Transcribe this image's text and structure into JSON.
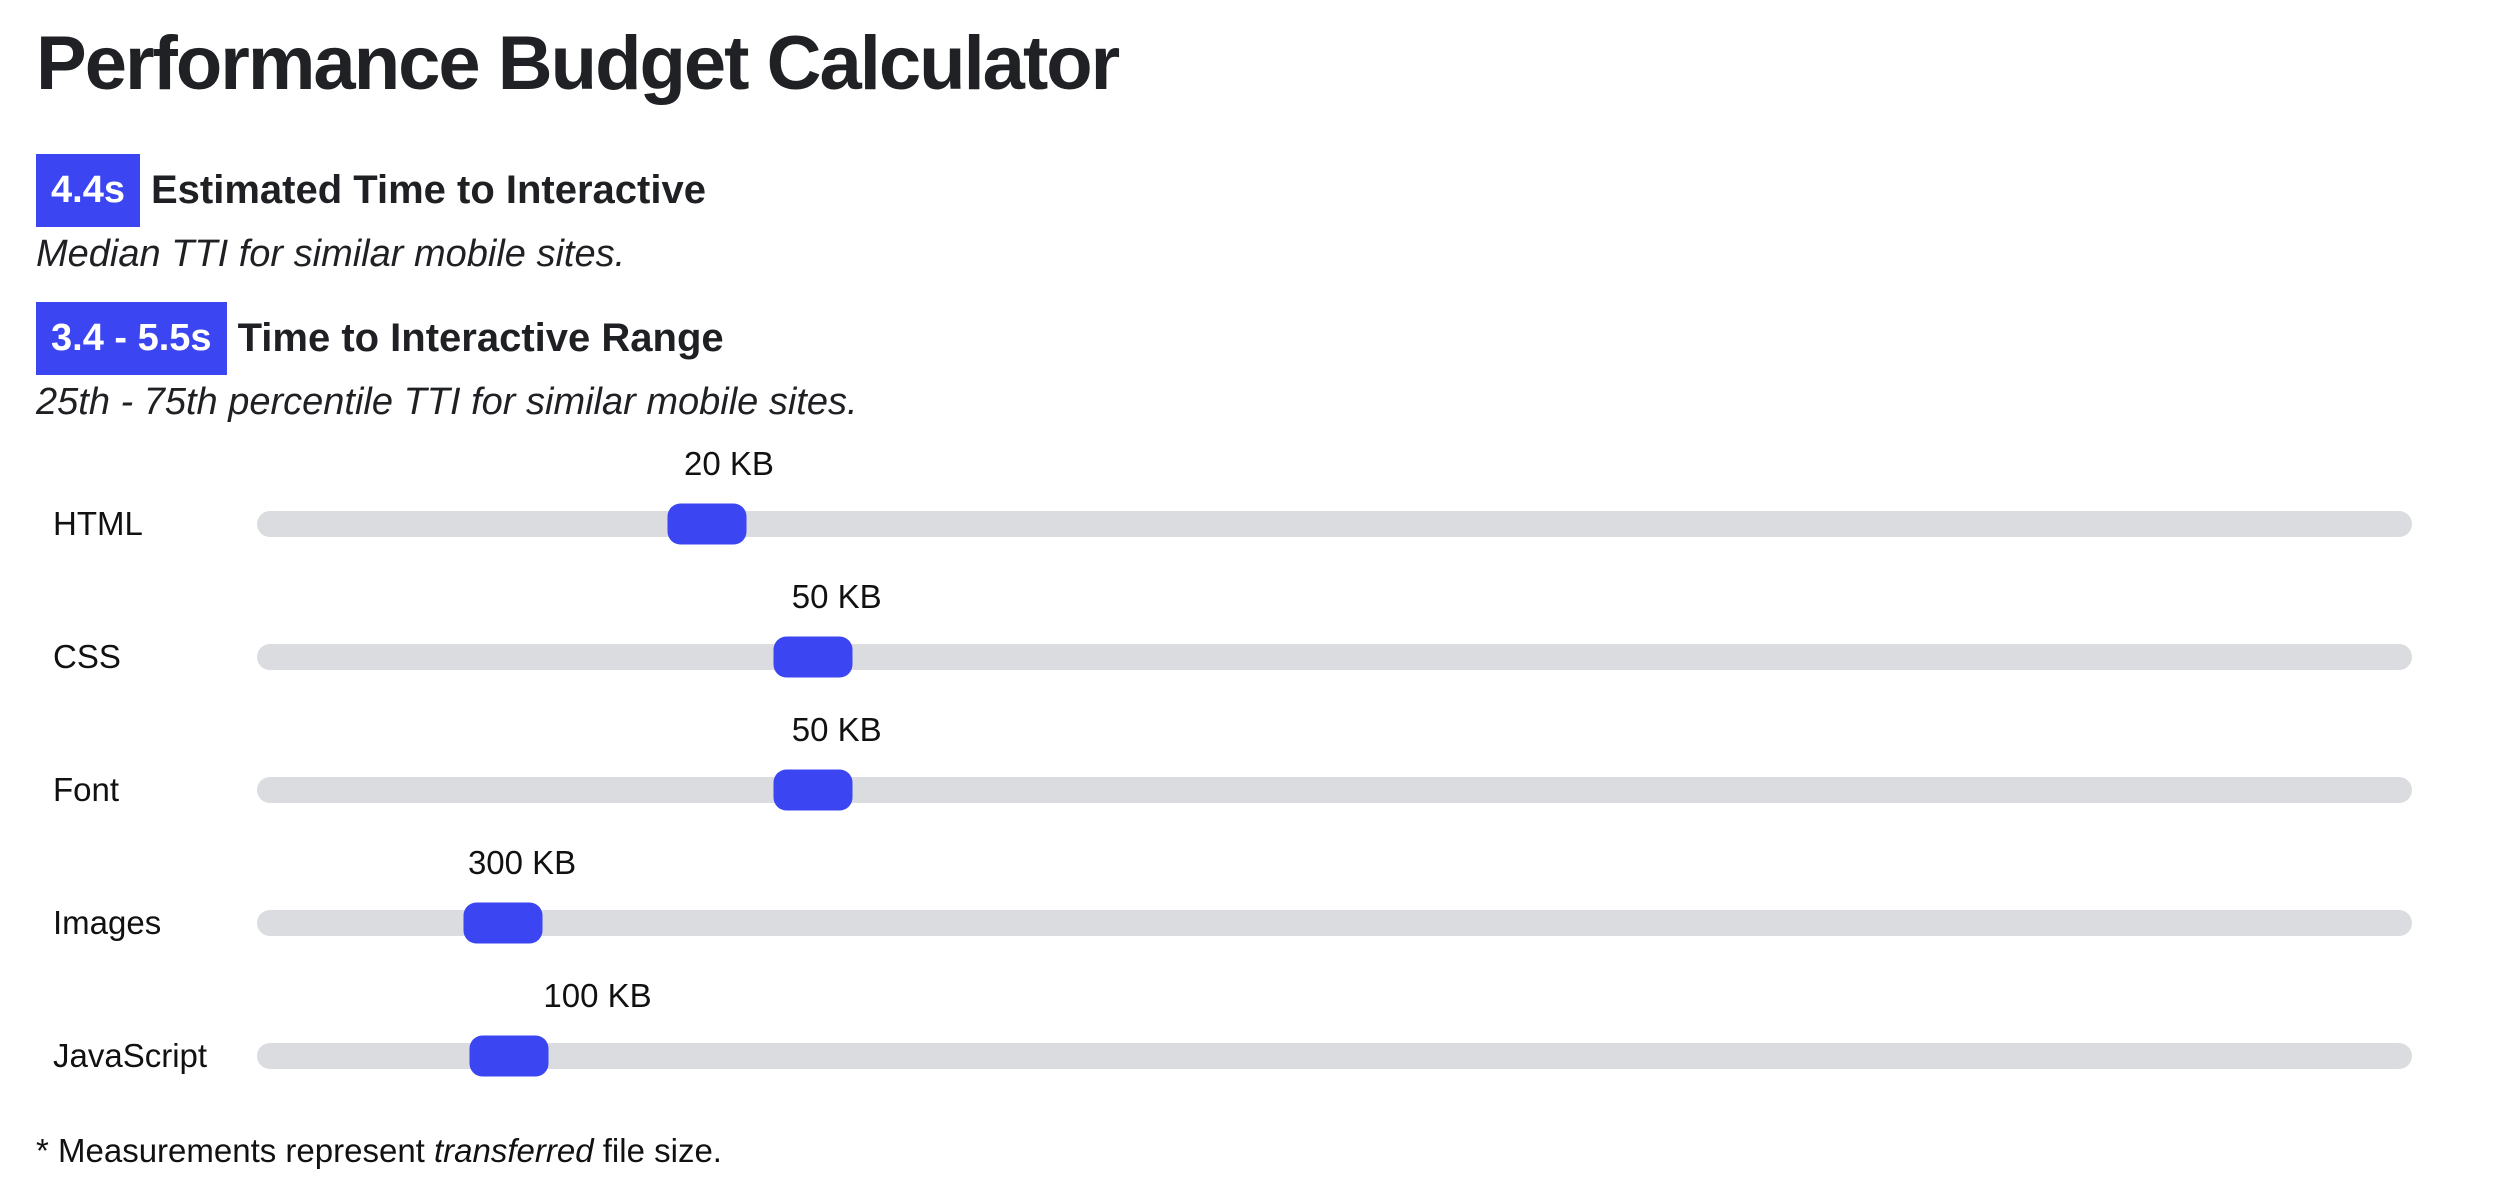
{
  "page": {
    "title": "Performance Budget Calculator"
  },
  "colors": {
    "accent_blue": "#3b45f1",
    "track_gray": "#dbdce0",
    "text": "#1f2023"
  },
  "metrics": [
    {
      "badge": "4.4s",
      "label": "Estimated Time to Interactive",
      "description": "Median TTI for similar mobile sites."
    },
    {
      "badge": "3.4 - 5.5s",
      "label": "Time to Interactive Range",
      "description": "25th - 75th percentile TTI for similar mobile sites."
    }
  ],
  "sliders": [
    {
      "id": "html",
      "label": "HTML",
      "value": "20 KB",
      "position_pct": 20.9,
      "label_pct": 21.9
    },
    {
      "id": "css",
      "label": "CSS",
      "value": "50 KB",
      "position_pct": 25.8,
      "label_pct": 26.9
    },
    {
      "id": "font",
      "label": "Font",
      "value": "50 KB",
      "position_pct": 25.8,
      "label_pct": 26.9
    },
    {
      "id": "images",
      "label": "Images",
      "value": "300 KB",
      "position_pct": 11.4,
      "label_pct": 12.3
    },
    {
      "id": "javascript",
      "label": "JavaScript",
      "value": "100 KB",
      "position_pct": 11.7,
      "label_pct": 15.8
    }
  ],
  "footnote": {
    "prefix": "* Measurements represent ",
    "emphasis": "transferred",
    "suffix": " file size."
  }
}
